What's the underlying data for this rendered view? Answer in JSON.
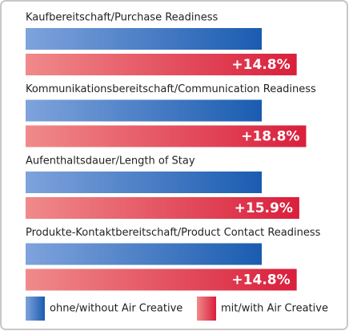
{
  "chart_data": {
    "type": "bar",
    "categories": [
      "Kaufbereitschaft/Purchase Readiness",
      "Kommunikationsbereitschaft/Communication Readiness",
      "Aufenthaltsdauer/Length of Stay",
      "Produkte-Kontaktbereitschaft/Product Contact Readiness"
    ],
    "series": [
      {
        "name": "ohne/without Air Creative",
        "color": "#1a5cb0",
        "values": [
          100,
          100,
          100,
          100
        ]
      },
      {
        "name": "mit/with Air Creative",
        "color": "#d91f3c",
        "values": [
          14.8,
          18.8,
          15.9,
          14.8
        ],
        "value_labels": [
          "+14.8%",
          "+18.8%",
          "+15.9%",
          "+14.8%"
        ]
      }
    ]
  }
}
